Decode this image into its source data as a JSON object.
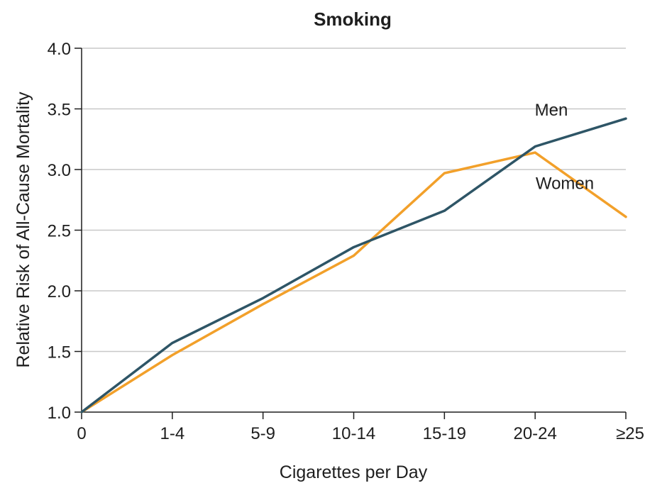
{
  "chart_data": {
    "type": "line",
    "title": "Smoking",
    "xlabel": "Cigarettes per Day",
    "ylabel": "Relative Risk of All-Cause Mortality",
    "categories": [
      "0",
      "1-4",
      "5-9",
      "10-14",
      "15-19",
      "20-24",
      "≥25"
    ],
    "yticks": [
      "1.0",
      "1.5",
      "2.0",
      "2.5",
      "3.0",
      "3.5",
      "4.0"
    ],
    "ylim": [
      1.0,
      4.0
    ],
    "grid": true,
    "series": [
      {
        "name": "Men",
        "color": "#2e5566",
        "values": [
          1.0,
          1.57,
          1.94,
          2.36,
          2.66,
          3.19,
          3.42
        ]
      },
      {
        "name": "Women",
        "color": "#f2a02a",
        "values": [
          1.0,
          1.47,
          1.89,
          2.29,
          2.97,
          3.14,
          2.61
        ]
      }
    ]
  }
}
